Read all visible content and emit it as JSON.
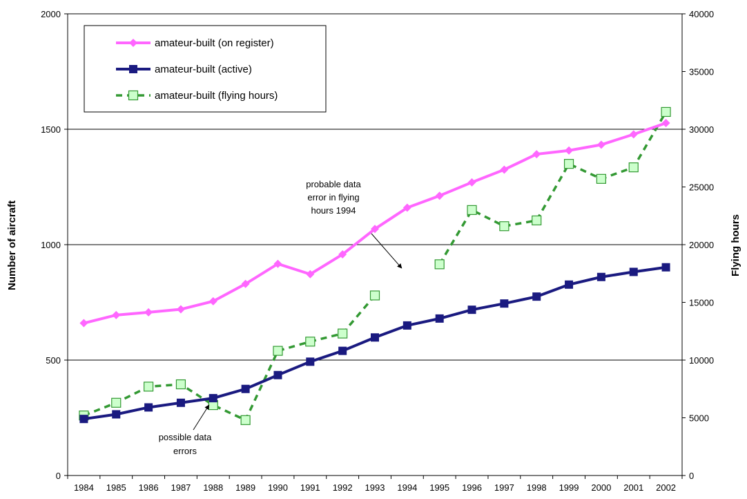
{
  "chart_data": {
    "type": "line",
    "title": "",
    "x": [
      1984,
      1985,
      1986,
      1987,
      1988,
      1989,
      1990,
      1991,
      1992,
      1993,
      1994,
      1995,
      1996,
      1997,
      1998,
      1999,
      2000,
      2001,
      2002
    ],
    "x_tick_labels": [
      "1984",
      "1985",
      "1986",
      "1987",
      "1988",
      "1989",
      "1990",
      "1991",
      "1992",
      "1993",
      "1994",
      "1995",
      "1996",
      "1997",
      "1998",
      "1999",
      "2000",
      "2001",
      "2002"
    ],
    "ylabel": "Number of aircraft",
    "ylim": [
      0,
      2000
    ],
    "y_ticks": [
      "0",
      "500",
      "1000",
      "1500",
      "2000"
    ],
    "y2label": "Flying hours",
    "y2lim": [
      0,
      40000
    ],
    "y2_ticks": [
      "0",
      "5000",
      "10000",
      "15000",
      "20000",
      "25000",
      "30000",
      "35000",
      "40000"
    ],
    "grid": "horizontal",
    "legend_position": "top-left",
    "series": [
      {
        "name": "amateur-built (on register)",
        "axis": "left",
        "color": "#ff66ff",
        "marker": "diamond",
        "line": "solid",
        "values": [
          660,
          695,
          707,
          720,
          755,
          830,
          917,
          872,
          958,
          1068,
          1160,
          1212,
          1270,
          1325,
          1392,
          1408,
          1433,
          1478,
          1527
        ]
      },
      {
        "name": "amateur-built (active)",
        "axis": "left",
        "color": "#1a1a80",
        "marker": "square",
        "line": "solid",
        "values": [
          245,
          265,
          295,
          315,
          335,
          375,
          435,
          493,
          540,
          598,
          650,
          680,
          718,
          745,
          775,
          827,
          860,
          882,
          902
        ]
      },
      {
        "name": "amateur-built (flying hours)",
        "axis": "right",
        "color": "#339933",
        "marker_fill": "#ccffcc",
        "marker": "open-square",
        "line": "dashed",
        "values": [
          5200,
          6300,
          7700,
          7900,
          6100,
          4800,
          10800,
          11600,
          12300,
          15600,
          null,
          18300,
          23000,
          21600,
          22100,
          27000,
          25700,
          26700,
          31500
        ]
      }
    ],
    "annotations": [
      {
        "lines": [
          "probable data",
          "error in flying",
          "hours 1994"
        ],
        "arrow_to_x": 1994
      },
      {
        "lines": [
          "possible data",
          "errors"
        ],
        "arrow_to_x": 1988
      }
    ]
  }
}
